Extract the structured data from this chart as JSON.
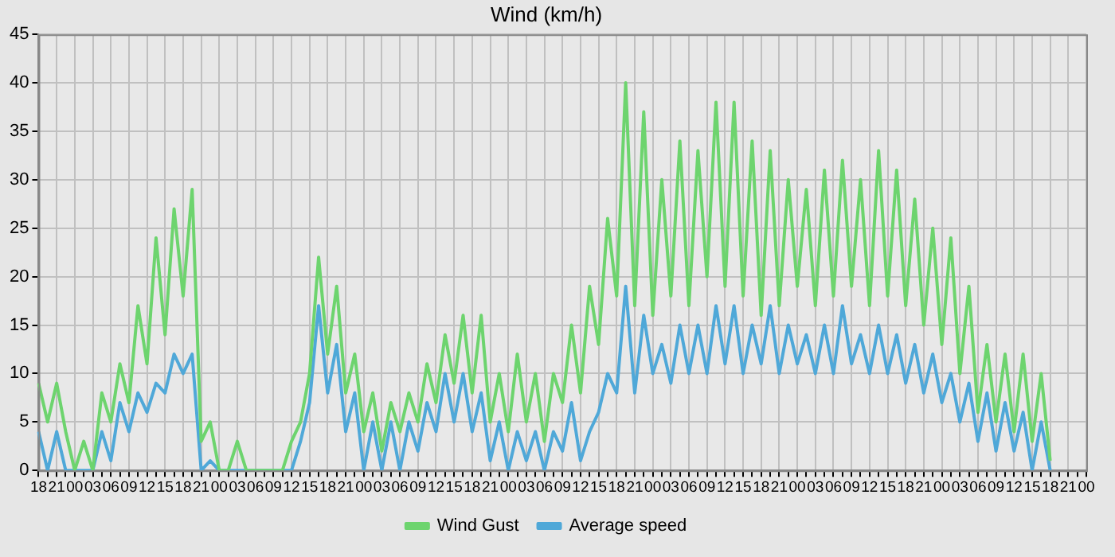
{
  "chart_data": {
    "type": "line",
    "title": "Wind (km/h)",
    "categories": [
      "18",
      null,
      "21",
      null,
      "00",
      null,
      "03",
      null,
      "06",
      null,
      "09",
      null,
      "12",
      null,
      "15",
      null,
      "18",
      null,
      "21",
      null,
      "00",
      null,
      "03",
      null,
      "06",
      null,
      "09",
      null,
      "12",
      null,
      "15",
      null,
      "18",
      null,
      "21",
      null,
      "00",
      null,
      "03",
      null,
      "06",
      null,
      "09",
      null,
      "12",
      null,
      "15",
      null,
      "18",
      null,
      "21",
      null,
      "00",
      null,
      "03",
      null,
      "06",
      null,
      "09",
      null,
      "12",
      null,
      "15",
      null,
      "18",
      null,
      "21",
      null,
      "00",
      null,
      "03",
      null,
      "06",
      null,
      "09",
      null,
      "12",
      null,
      "15",
      null,
      "18",
      null,
      "21",
      null,
      "00",
      null,
      "03",
      null,
      "06",
      null,
      "09",
      null,
      "12",
      null,
      "15",
      null,
      "18",
      null,
      "21",
      null,
      "00",
      null,
      "03",
      null,
      "06",
      null,
      "09",
      null,
      "12",
      null,
      "15",
      null,
      "18",
      null,
      "21",
      null,
      "00"
    ],
    "series": [
      {
        "name": "Wind Gust",
        "color": "#6dd46e",
        "values": [
          9,
          5,
          9,
          4,
          0,
          3,
          0,
          8,
          5,
          11,
          7,
          17,
          11,
          24,
          14,
          27,
          18,
          29,
          3,
          5,
          0,
          0,
          3,
          0,
          0,
          0,
          0,
          0,
          3,
          5,
          10,
          22,
          12,
          19,
          8,
          12,
          4,
          8,
          2,
          7,
          4,
          8,
          5,
          11,
          7,
          14,
          9,
          16,
          8,
          16,
          5,
          10,
          4,
          12,
          5,
          10,
          3,
          10,
          7,
          15,
          8,
          19,
          13,
          26,
          18,
          40,
          17,
          37,
          16,
          30,
          18,
          34,
          17,
          33,
          20,
          38,
          19,
          38,
          18,
          34,
          16,
          33,
          17,
          30,
          19,
          29,
          17,
          31,
          18,
          32,
          19,
          30,
          17,
          33,
          18,
          31,
          17,
          28,
          15,
          25,
          13,
          24,
          10,
          19,
          6,
          13,
          5,
          12,
          4,
          12,
          3,
          10,
          1,
          null,
          null,
          null,
          null
        ]
      },
      {
        "name": "Average speed",
        "color": "#4fa8d8",
        "values": [
          4,
          0,
          4,
          0,
          0,
          0,
          0,
          4,
          1,
          7,
          4,
          8,
          6,
          9,
          8,
          12,
          10,
          12,
          0,
          1,
          0,
          0,
          0,
          0,
          0,
          0,
          0,
          0,
          0,
          3,
          7,
          17,
          8,
          13,
          4,
          8,
          0,
          5,
          0,
          5,
          0,
          5,
          2,
          7,
          4,
          10,
          5,
          10,
          4,
          8,
          1,
          5,
          0,
          4,
          1,
          4,
          0,
          4,
          2,
          7,
          1,
          4,
          6,
          10,
          8,
          19,
          8,
          16,
          10,
          13,
          9,
          15,
          10,
          15,
          10,
          17,
          11,
          17,
          10,
          15,
          11,
          17,
          10,
          15,
          11,
          14,
          10,
          15,
          10,
          17,
          11,
          14,
          10,
          15,
          10,
          14,
          9,
          13,
          8,
          12,
          7,
          10,
          5,
          9,
          3,
          8,
          2,
          7,
          2,
          6,
          0,
          5,
          0,
          null,
          null,
          null,
          null
        ]
      }
    ],
    "ylim": [
      0,
      45
    ],
    "yticks": [
      0,
      5,
      10,
      15,
      20,
      25,
      30,
      35,
      40,
      45
    ],
    "grid": true,
    "legend": "bottom",
    "marker": "none",
    "line_style": "solid"
  }
}
